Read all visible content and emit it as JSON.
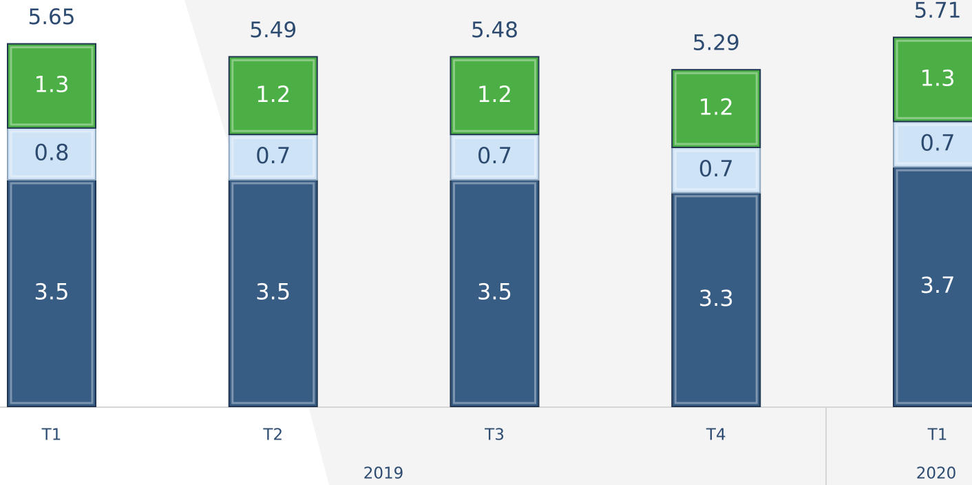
{
  "chart_data": {
    "type": "stacked_bar",
    "categories": [
      "T1",
      "T2",
      "T3",
      "T4",
      "T1"
    ],
    "groups": [
      "2019",
      "2020"
    ],
    "series": [
      {
        "color": "#385d84",
        "values": [
          3.5,
          3.5,
          3.5,
          3.3,
          3.7
        ]
      },
      {
        "color": "#cfe3f6",
        "values": [
          0.8,
          0.7,
          0.7,
          0.7,
          0.7
        ]
      },
      {
        "color": "#4caf45",
        "values": [
          1.3,
          1.2,
          1.2,
          1.2,
          1.3
        ]
      }
    ],
    "totals": [
      5.65,
      5.49,
      5.48,
      5.29,
      5.71
    ],
    "ylim": [
      0,
      6
    ]
  }
}
